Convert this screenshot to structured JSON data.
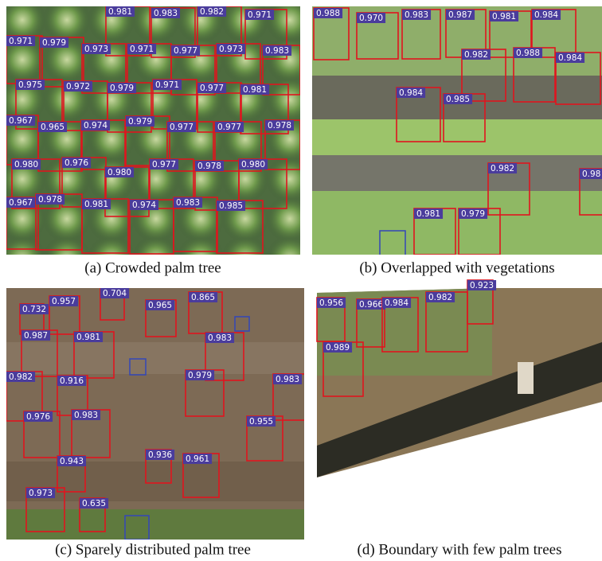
{
  "panels": [
    {
      "caption": "(a) Crowded palm tree",
      "detections": [
        "0.981",
        "0.983",
        "0.982",
        "0.971",
        "0.971",
        "0.979",
        "0.973",
        "0.971",
        "0.977",
        "0.973",
        "0.983",
        "0.975",
        "0.972",
        "0.979",
        "0.971",
        "0.977",
        "0.981",
        "0.967",
        "0.965",
        "0.974",
        "0.979",
        "0.977",
        "0.977",
        "0.978",
        "0.980",
        "0.976",
        "0.980",
        "0.977",
        "0.978",
        "0.980",
        "0.967",
        "0.978",
        "0.981",
        "0.974",
        "0.983",
        "0.985"
      ]
    },
    {
      "caption": "(b) Overlapped with vegetations",
      "detections": [
        "0.988",
        "0.970",
        "0.983",
        "0.987",
        "0.981",
        "0.984",
        "0.982",
        "0.988",
        "0.984",
        "0.984",
        "0.985",
        "0.982",
        "0.98",
        "0.981",
        "0.979"
      ]
    },
    {
      "caption": "(c) Sparely distributed palm tree",
      "detections": [
        "0.704",
        "0.732",
        "0.957",
        "0.965",
        "0.865",
        "0.987",
        "0.981",
        "0.983",
        "0.982",
        "0.916",
        "0.979",
        "0.983",
        "0.976",
        "0.983",
        "0.955",
        "0.943",
        "0.936",
        "0.961",
        "0.973",
        "0.635"
      ]
    },
    {
      "caption": "(d) Boundary with few palm trees",
      "detections": [
        "0.956",
        "0.966",
        "0.984",
        "0.982",
        "0.923",
        "0.989"
      ]
    }
  ]
}
